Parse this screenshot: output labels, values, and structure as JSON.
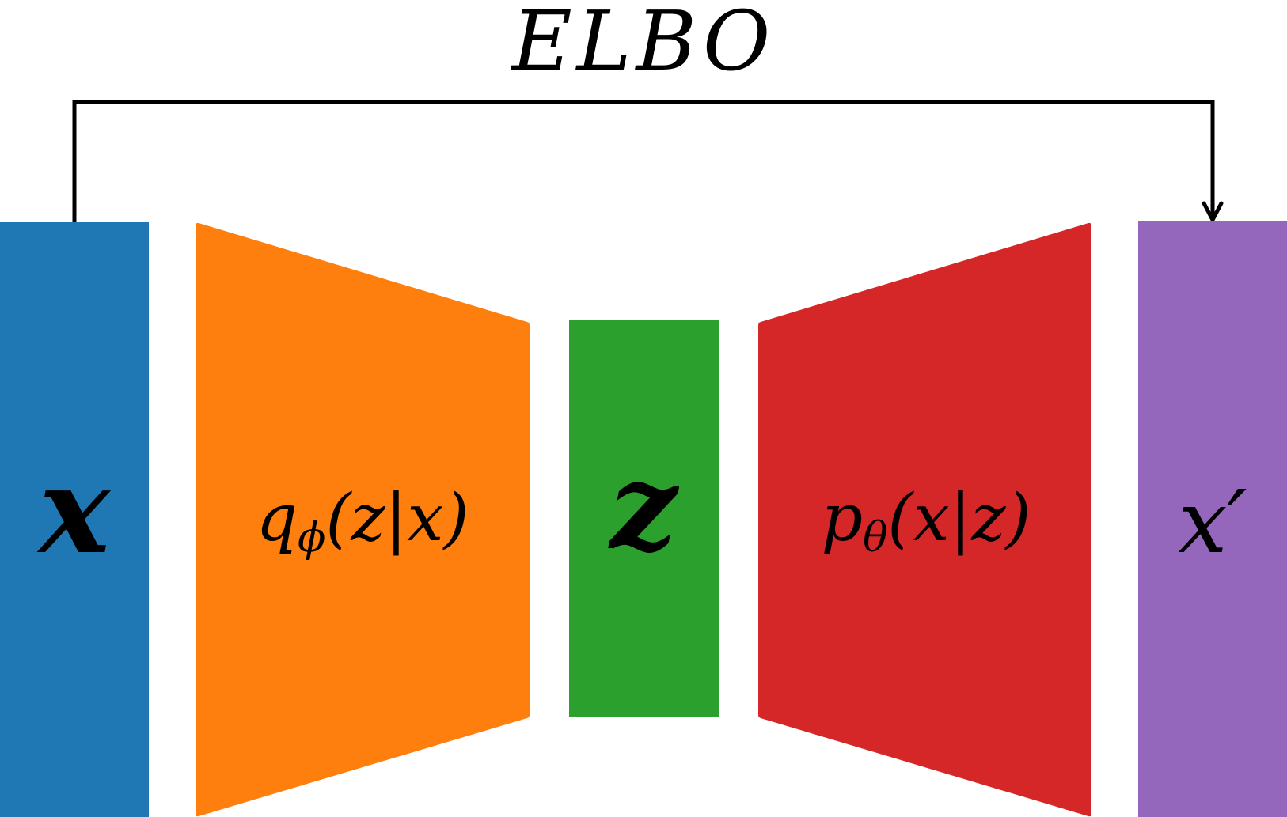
{
  "title": "ELBO",
  "blocks": [
    {
      "id": "input",
      "label": "x",
      "color": "#1f77b4"
    },
    {
      "id": "encoder",
      "label_func": "q",
      "label_sub": "ϕ",
      "label_args": "(z|x)",
      "color": "#ff7f0e"
    },
    {
      "id": "latent",
      "label": "z",
      "color": "#2ca02c"
    },
    {
      "id": "decoder",
      "label_func": "p",
      "label_sub": "θ",
      "label_args": "(x|z)",
      "color": "#d62728"
    },
    {
      "id": "output",
      "label": "x′",
      "color": "#9467bd"
    }
  ],
  "connector": {
    "from": "input",
    "to": "output",
    "color": "#000000"
  }
}
